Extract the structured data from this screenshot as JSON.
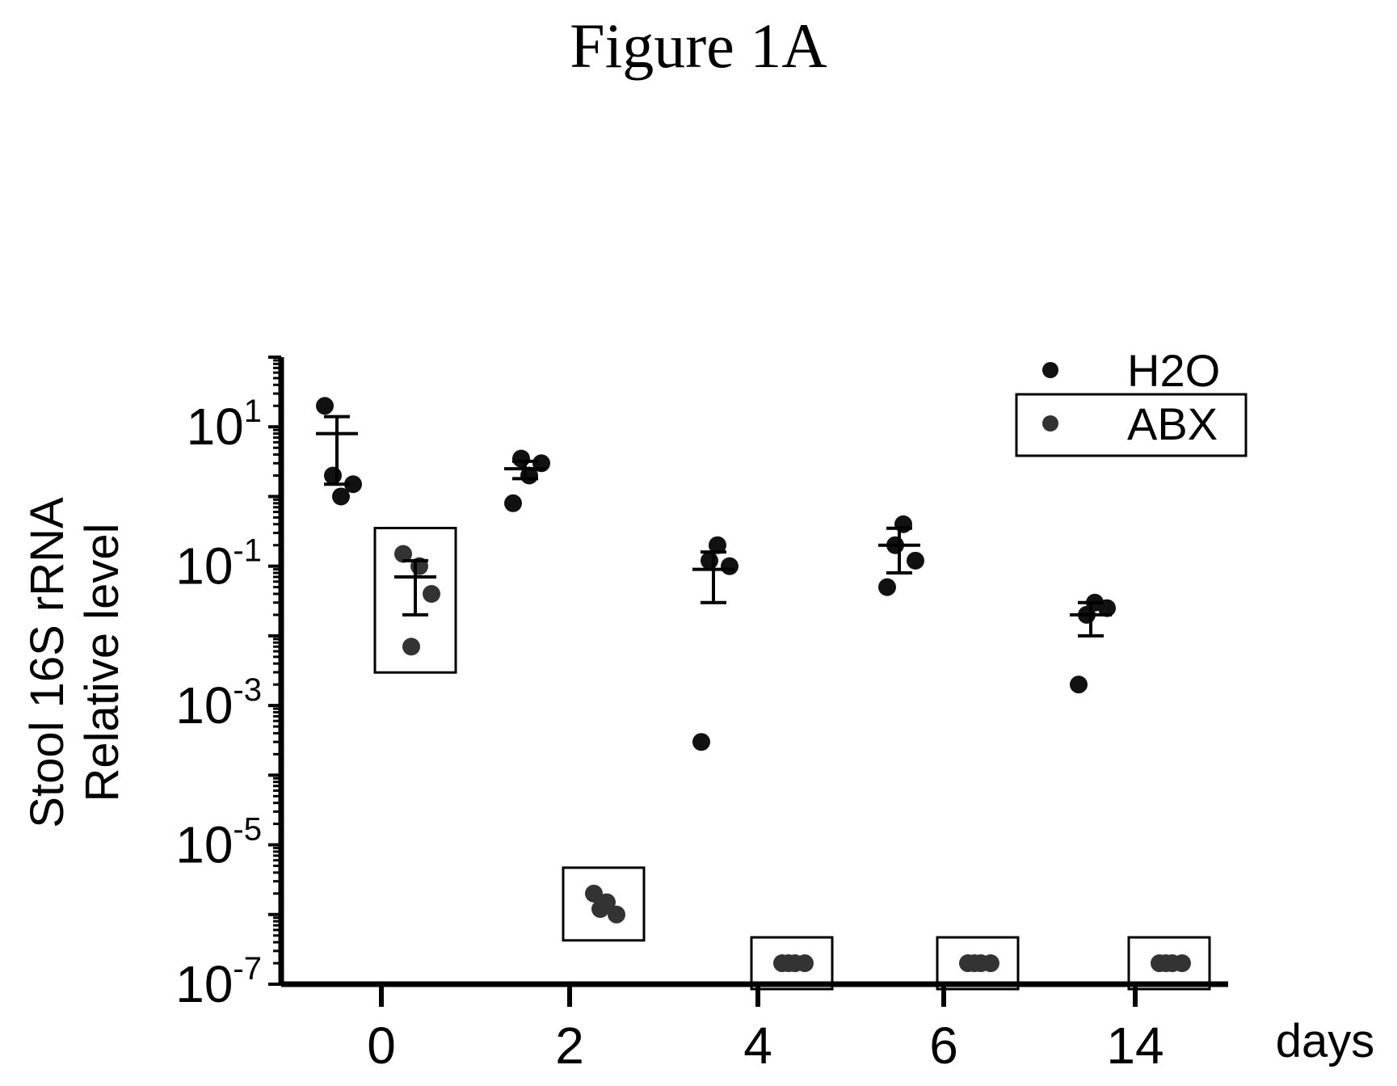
{
  "figure_label": "Figure 1A",
  "chart_data": {
    "type": "scatter",
    "title": "",
    "xlabel": "days",
    "ylabel_lines": [
      "Stool 16S rRNA",
      "Relative level"
    ],
    "y_scale": "log",
    "ylim": [
      1e-07,
      100
    ],
    "y_ticks": [
      {
        "value": 1e-07,
        "base": "10",
        "exp": "-7"
      },
      {
        "value": 1e-05,
        "base": "10",
        "exp": "-5"
      },
      {
        "value": 0.001,
        "base": "10",
        "exp": "-3"
      },
      {
        "value": 0.1,
        "base": "10",
        "exp": "-1"
      },
      {
        "value": 10,
        "base": "10",
        "exp": "1"
      }
    ],
    "categories": [
      "0",
      "2",
      "4",
      "6",
      "14"
    ],
    "legend_position": "top-right",
    "series": [
      {
        "name": "H2O",
        "color": "#111111",
        "points": [
          [
            20,
            1.0,
            1.5,
            2.0
          ],
          [
            0.8,
            2.0,
            3.0,
            3.5
          ],
          [
            0.0003,
            0.2,
            0.1,
            0.12
          ],
          [
            0.05,
            0.4,
            0.12,
            0.2
          ],
          [
            0.002,
            0.03,
            0.025,
            0.02
          ]
        ],
        "mean": [
          8,
          2.5,
          0.09,
          0.2,
          0.02
        ],
        "error": [
          [
            1.5,
            14
          ],
          [
            1.8,
            3.2
          ],
          [
            0.03,
            0.16
          ],
          [
            0.08,
            0.35
          ],
          [
            0.01,
            0.03
          ]
        ]
      },
      {
        "name": "ABX",
        "color": "#333333",
        "boxed": true,
        "points": [
          [
            0.15,
            0.1,
            0.04,
            0.007
          ],
          [
            2e-06,
            1.5e-06,
            1e-06,
            1.2e-06
          ],
          [
            2e-07,
            2e-07,
            2e-07,
            2e-07
          ],
          [
            2e-07,
            2e-07,
            2e-07,
            2e-07
          ],
          [
            2e-07,
            2e-07,
            2e-07,
            2e-07
          ]
        ],
        "mean": [
          0.07,
          null,
          null,
          null,
          null
        ],
        "error": [
          [
            0.02,
            0.12
          ],
          null,
          null,
          null,
          null
        ]
      }
    ]
  }
}
